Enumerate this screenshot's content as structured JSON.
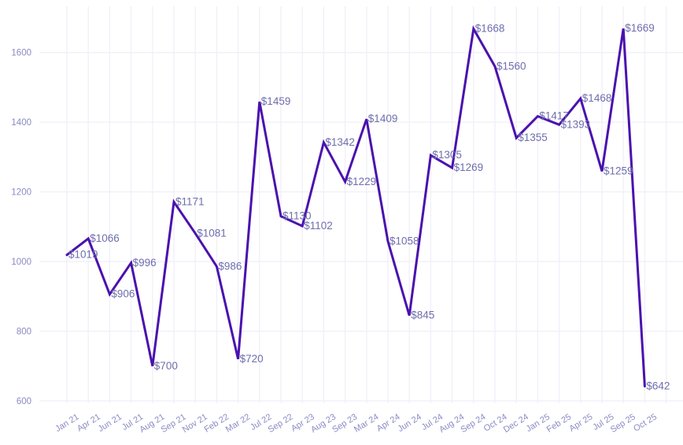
{
  "chart_data": {
    "type": "line",
    "title": "",
    "xlabel": "",
    "ylabel": "",
    "x": [
      "Jan 21",
      "Apr 21",
      "Jun 21",
      "Jul 21",
      "Aug 21",
      "Sep 21",
      "Nov 21",
      "Feb 22",
      "Mar 22",
      "Jul 22",
      "Sep 22",
      "Apr 23",
      "Aug 23",
      "Sep 23",
      "Mar 24",
      "Apr 24",
      "Jun 24",
      "Jul 24",
      "Aug 24",
      "Sep 24",
      "Oct 24",
      "Dec 24",
      "Jan 25",
      "Feb 25",
      "Apr 25",
      "Jul 25",
      "Sep 25",
      "Oct 25"
    ],
    "values": [
      1019,
      1066,
      906,
      996,
      700,
      1171,
      1081,
      986,
      720,
      1459,
      1130,
      1102,
      1342,
      1229,
      1409,
      1058,
      845,
      1305,
      1269,
      1668,
      1560,
      1355,
      1417,
      1393,
      1468,
      1259,
      1669,
      642
    ],
    "point_labels": [
      "$1019",
      "$1066",
      "$906",
      "$996",
      "$700",
      "$1171",
      "$1081",
      "$986",
      "$720",
      "$1459",
      "$1130",
      "$1102",
      "$1342",
      "$1229",
      "$1409",
      "$1058",
      "$845",
      "$1305",
      "$1269",
      "$1668",
      "$1560",
      "$1355",
      "$1417",
      "$1393",
      "$1468",
      "$1259",
      "$1669",
      "$642"
    ],
    "y_ticks": [
      "600",
      "800",
      "1000",
      "1200",
      "1400",
      "1600"
    ],
    "y_tick_values": [
      600,
      800,
      1000,
      1200,
      1400,
      1600
    ],
    "ylim": [
      600,
      1700
    ],
    "grid": "on",
    "legend": "none",
    "colors": {
      "line": "#4a11ae",
      "point_label": "#6e6eae",
      "axis_tick": "#8a8ac4",
      "gridline": "#f1eff9",
      "background": "#ffffff"
    }
  }
}
